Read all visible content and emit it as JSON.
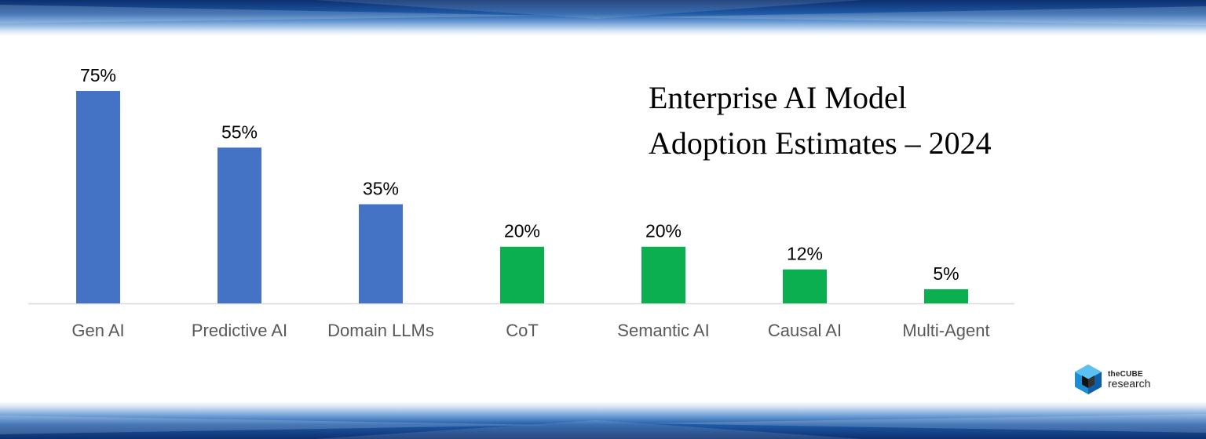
{
  "title": {
    "line1": "Enterprise AI Model",
    "line2": "Adoption Estimates – 2024"
  },
  "logo": {
    "line1": "theCUBE",
    "line2": "research",
    "icon": "cube-logo-icon"
  },
  "colors": {
    "blue": "#4472C4",
    "green": "#0BAF4F",
    "axis": "#d9d9d9",
    "band": "#1f5aa6"
  },
  "chart_data": {
    "type": "bar",
    "title": "Enterprise AI Model Adoption Estimates – 2024",
    "xlabel": "",
    "ylabel": "",
    "ylim": [
      0,
      80
    ],
    "grid": false,
    "categories": [
      "Gen AI",
      "Predictive AI",
      "Domain LLMs",
      "CoT",
      "Semantic AI",
      "Causal AI",
      "Multi-Agent"
    ],
    "values": [
      75,
      55,
      35,
      20,
      20,
      12,
      5
    ],
    "labels": [
      "75%",
      "55%",
      "35%",
      "20%",
      "20%",
      "12%",
      "5%"
    ],
    "bar_colors": [
      "#4472C4",
      "#4472C4",
      "#4472C4",
      "#0BAF4F",
      "#0BAF4F",
      "#0BAF4F",
      "#0BAF4F"
    ]
  }
}
